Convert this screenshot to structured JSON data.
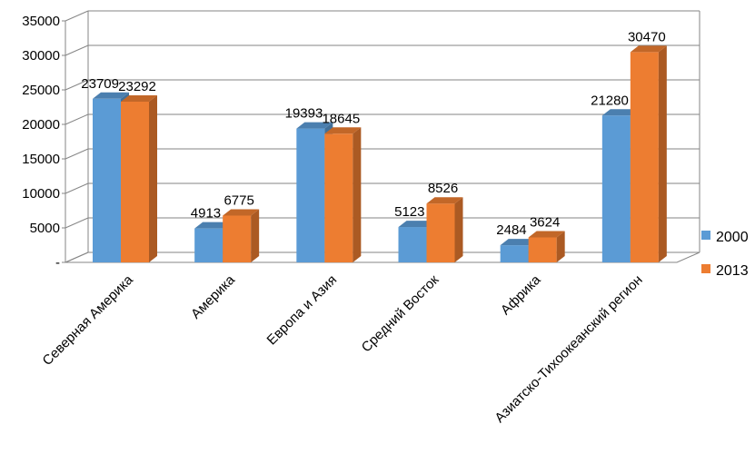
{
  "chart_data": {
    "type": "bar",
    "categories": [
      "Северная Америка",
      "Америка",
      "Европа и Азия",
      "Средний Восток",
      "Африка",
      "Азиатско-Тихоокеанский регион"
    ],
    "series": [
      {
        "name": "2000",
        "values": [
          23709,
          4913,
          19393,
          5123,
          2484,
          21280
        ],
        "color": "#5B9BD5"
      },
      {
        "name": "2013",
        "values": [
          23292,
          6775,
          18645,
          8526,
          3624,
          30470
        ],
        "color": "#ED7D31"
      }
    ],
    "data_labels": [
      [
        "23709",
        "4913",
        "19393",
        "5123",
        "2484",
        "21280"
      ],
      [
        "23292",
        "6775",
        "18645",
        "8526",
        "3624",
        "30470"
      ]
    ],
    "yticks": [
      0,
      5000,
      10000,
      15000,
      20000,
      25000,
      30000,
      35000
    ],
    "ytick_labels": [
      "-",
      "5000",
      "10000",
      "15000",
      "20000",
      "25000",
      "30000",
      "35000"
    ],
    "ylim": [
      0,
      35000
    ],
    "grid": true,
    "legend_position": "right",
    "style": "3d-clustered-column"
  }
}
